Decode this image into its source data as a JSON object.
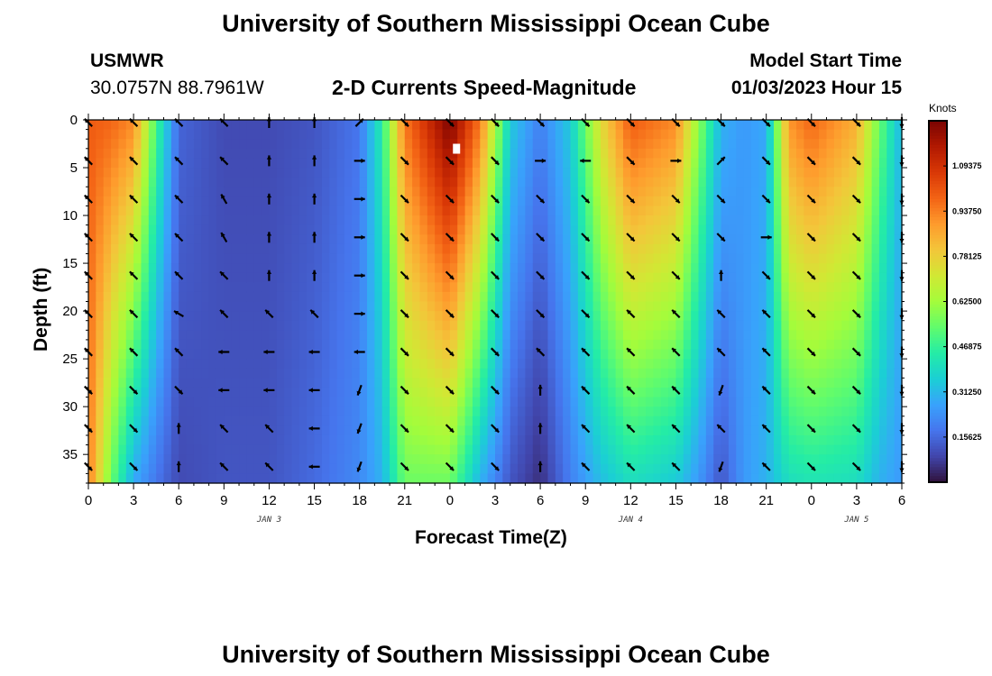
{
  "header": {
    "title": "University of Southern Mississippi Ocean Cube",
    "station": "USMWR",
    "coords": "30.0757N  88.7961W",
    "subtitle": "2-D Currents Speed-Magnitude",
    "model_start_label": "Model Start Time",
    "model_start_value": "01/03/2023 Hour 15",
    "repeat_title": "University of Southern Mississippi Ocean Cube"
  },
  "colors": {
    "scale": [
      "#30123b",
      "#4145ab",
      "#4675ed",
      "#39a2fc",
      "#1bcfd4",
      "#24eca6",
      "#61fc6c",
      "#a4fc3b",
      "#d1e834",
      "#f3c63a",
      "#fe9b2d",
      "#f36315",
      "#d93806",
      "#b11901",
      "#7a0402"
    ]
  },
  "chart_data": {
    "type": "heatmap",
    "title": "2-D Currents Speed-Magnitude",
    "xlabel": "Forecast Time(Z)",
    "ylabel": "Depth (ft)",
    "x_tick_labels": [
      "0",
      "3",
      "6",
      "9",
      "12",
      "15",
      "18",
      "21",
      "0",
      "3",
      "6",
      "9",
      "12",
      "15",
      "18",
      "21",
      "0",
      "3",
      "6"
    ],
    "x_hours": [
      0,
      3,
      6,
      9,
      12,
      15,
      18,
      21,
      24,
      27,
      30,
      33,
      36,
      39,
      42,
      45,
      48,
      51,
      54
    ],
    "date_labels": [
      {
        "label": "JAN 3",
        "hour": 12
      },
      {
        "label": "JAN 4",
        "hour": 36
      },
      {
        "label": "JAN 5",
        "hour": 51
      }
    ],
    "y_ticks": [
      0,
      5,
      10,
      15,
      20,
      25,
      30,
      35
    ],
    "ylim": [
      0,
      38
    ],
    "xlim": [
      0,
      54
    ],
    "colorbar": {
      "unit": "Knots",
      "range": [
        0,
        1.25
      ],
      "tick_values": [
        0.15625,
        0.3125,
        0.46875,
        0.625,
        0.78125,
        0.9375,
        1.09375
      ],
      "tick_labels": [
        "0.15625",
        "0.31250",
        "0.46875",
        "0.62500",
        "0.78125",
        "0.93750",
        "1.09375"
      ]
    },
    "speed_columns": [
      {
        "hour": 0,
        "top": 1.0,
        "bottom": 0.95
      },
      {
        "hour": 1.5,
        "top": 0.98,
        "bottom": 0.55
      },
      {
        "hour": 3,
        "top": 0.92,
        "bottom": 0.28
      },
      {
        "hour": 4.5,
        "top": 0.5,
        "bottom": 0.18
      },
      {
        "hour": 6,
        "top": 0.15,
        "bottom": 0.1
      },
      {
        "hour": 9,
        "top": 0.1,
        "bottom": 0.12
      },
      {
        "hour": 12,
        "top": 0.1,
        "bottom": 0.12
      },
      {
        "hour": 15,
        "top": 0.12,
        "bottom": 0.16
      },
      {
        "hour": 18,
        "top": 0.18,
        "bottom": 0.22
      },
      {
        "hour": 19.5,
        "top": 0.45,
        "bottom": 0.3
      },
      {
        "hour": 21,
        "top": 0.95,
        "bottom": 0.55
      },
      {
        "hour": 24,
        "top": 1.25,
        "bottom": 0.55
      },
      {
        "hour": 26,
        "top": 0.95,
        "bottom": 0.3
      },
      {
        "hour": 28,
        "top": 0.35,
        "bottom": 0.12
      },
      {
        "hour": 30,
        "top": 0.2,
        "bottom": 0.05
      },
      {
        "hour": 32,
        "top": 0.35,
        "bottom": 0.2
      },
      {
        "hour": 34,
        "top": 0.75,
        "bottom": 0.32
      },
      {
        "hour": 36,
        "top": 1.0,
        "bottom": 0.4
      },
      {
        "hour": 39,
        "top": 0.92,
        "bottom": 0.35
      },
      {
        "hour": 40.5,
        "top": 0.6,
        "bottom": 0.25
      },
      {
        "hour": 42,
        "top": 0.3,
        "bottom": 0.12
      },
      {
        "hour": 43.5,
        "top": 0.25,
        "bottom": 0.25
      },
      {
        "hour": 45,
        "top": 0.28,
        "bottom": 0.3
      },
      {
        "hour": 46.5,
        "top": 0.9,
        "bottom": 0.4
      },
      {
        "hour": 48,
        "top": 0.98,
        "bottom": 0.42
      },
      {
        "hour": 51,
        "top": 0.85,
        "bottom": 0.4
      },
      {
        "hour": 52.5,
        "top": 0.55,
        "bottom": 0.3
      },
      {
        "hour": 54,
        "top": 0.3,
        "bottom": 0.25
      }
    ],
    "vector_hours": [
      0,
      3,
      6,
      9,
      12,
      15,
      18,
      21,
      24,
      27,
      30,
      33,
      36,
      39,
      42,
      45,
      48,
      51,
      54
    ],
    "vector_depths": [
      0,
      4,
      8,
      12,
      16,
      20,
      24,
      28,
      32,
      36
    ],
    "vector_directions_deg": [
      [
        315,
        315,
        315,
        315,
        0,
        0,
        45,
        135,
        135,
        135,
        135,
        135,
        135,
        135,
        135,
        135,
        135,
        135,
        180
      ],
      [
        315,
        315,
        315,
        315,
        0,
        0,
        90,
        135,
        135,
        135,
        90,
        270,
        135,
        90,
        45,
        135,
        135,
        135,
        180
      ],
      [
        315,
        315,
        315,
        330,
        0,
        0,
        90,
        135,
        135,
        135,
        135,
        135,
        135,
        135,
        135,
        135,
        135,
        135,
        180
      ],
      [
        315,
        315,
        315,
        330,
        0,
        0,
        90,
        135,
        135,
        135,
        135,
        135,
        135,
        135,
        135,
        90,
        135,
        135,
        180
      ],
      [
        315,
        315,
        315,
        315,
        0,
        0,
        90,
        135,
        135,
        135,
        135,
        135,
        135,
        135,
        0,
        135,
        135,
        135,
        180
      ],
      [
        315,
        315,
        300,
        315,
        315,
        315,
        90,
        135,
        135,
        135,
        135,
        135,
        315,
        315,
        315,
        315,
        135,
        135,
        180
      ],
      [
        315,
        315,
        315,
        270,
        270,
        270,
        270,
        135,
        135,
        135,
        315,
        315,
        315,
        315,
        315,
        315,
        135,
        135,
        180
      ],
      [
        135,
        135,
        135,
        270,
        270,
        270,
        200,
        135,
        135,
        135,
        0,
        315,
        315,
        315,
        200,
        315,
        135,
        135,
        180
      ],
      [
        135,
        135,
        0,
        315,
        315,
        270,
        200,
        135,
        135,
        135,
        0,
        315,
        315,
        315,
        315,
        315,
        135,
        135,
        180
      ],
      [
        135,
        135,
        0,
        315,
        315,
        270,
        200,
        135,
        135,
        135,
        0,
        315,
        315,
        315,
        200,
        315,
        135,
        135,
        180
      ]
    ]
  }
}
